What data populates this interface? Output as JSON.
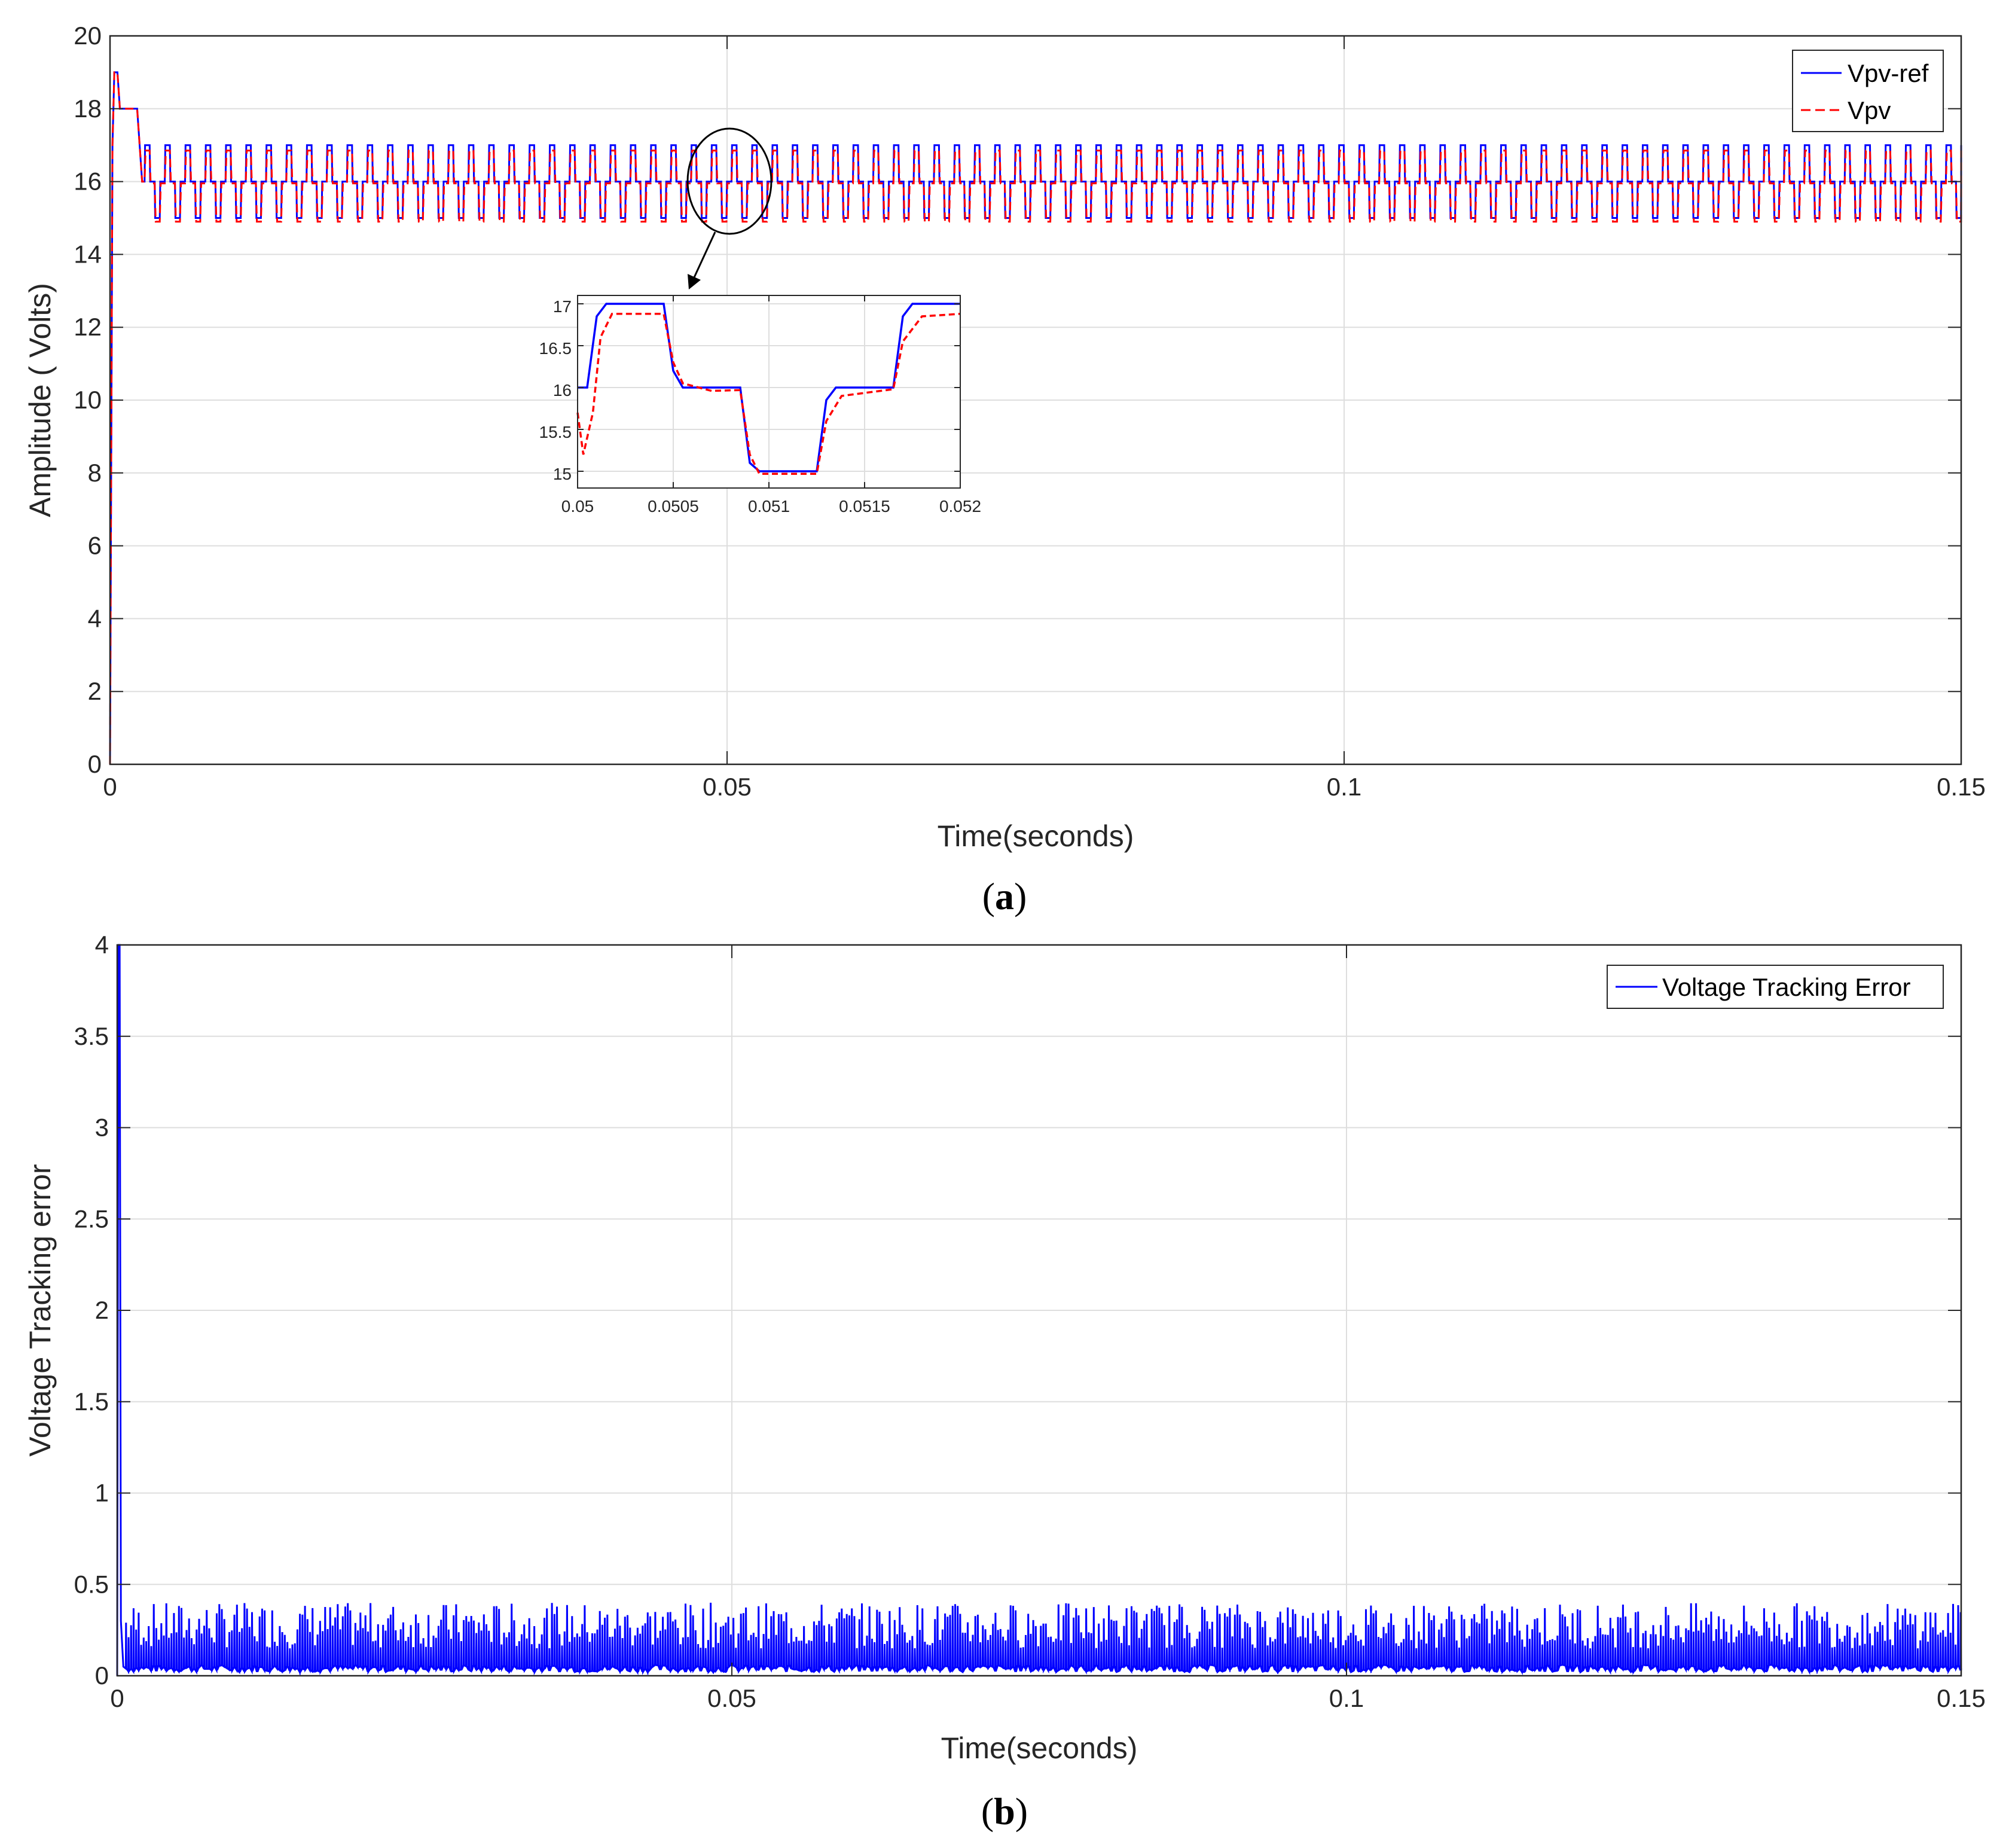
{
  "colors": {
    "ref": "#0000ff",
    "pv": "#ff0000",
    "grid": "#dedede",
    "axis": "#262626"
  },
  "chart_data": [
    {
      "type": "line",
      "panel": "a",
      "caption": {
        "open": "(",
        "letter": "a",
        "close": ")"
      },
      "xlabel": "Time(seconds)",
      "ylabel": "Amplitude ( Volts)",
      "xlim": [
        0,
        0.15
      ],
      "ylim": [
        0,
        20
      ],
      "xticks": [
        0,
        0.05,
        0.1,
        0.15
      ],
      "xtick_labels": [
        "0",
        "0.05",
        "0.1",
        "0.15"
      ],
      "yticks": [
        0,
        2,
        4,
        6,
        8,
        10,
        12,
        14,
        16,
        18,
        20
      ],
      "ytick_labels": [
        "0",
        "2",
        "4",
        "6",
        "8",
        "10",
        "12",
        "14",
        "16",
        "18",
        "20"
      ],
      "grid": true,
      "legend": {
        "placement": "top-right"
      },
      "series": [
        {
          "name": "Vpv-ref",
          "color": "#0000ff",
          "style": "solid",
          "levels": [
            17,
            16,
            15,
            16
          ],
          "step_period": 0.00041,
          "startup_peak": 19,
          "startup_plateau": 18
        },
        {
          "name": "Vpv",
          "color": "#ff0000",
          "style": "dashed",
          "levels": [
            16.85,
            15.95,
            14.9,
            15.95
          ],
          "step_period": 0.00041,
          "startup_peak": 19,
          "startup_plateau": 18
        }
      ],
      "inset": {
        "xlim": [
          0.05,
          0.052
        ],
        "ylim": [
          14.8,
          17.1
        ],
        "xticks": [
          0.05,
          0.0505,
          0.051,
          0.0515,
          0.052
        ],
        "xtick_labels": [
          "0.05",
          "0.0505",
          "0.051",
          "0.0515",
          "0.052"
        ],
        "yticks": [
          15,
          15.5,
          16,
          16.5,
          17
        ],
        "ytick_labels": [
          "15",
          "15.5",
          "16",
          "16.5",
          "17"
        ],
        "ref_points": [
          [
            0.05,
            16
          ],
          [
            0.05005,
            16
          ],
          [
            0.0501,
            16.85
          ],
          [
            0.05015,
            17
          ],
          [
            0.05045,
            17
          ],
          [
            0.0505,
            16.2
          ],
          [
            0.05055,
            16
          ],
          [
            0.05085,
            16
          ],
          [
            0.0509,
            15.1
          ],
          [
            0.05095,
            15
          ],
          [
            0.05125,
            15
          ],
          [
            0.0513,
            15.85
          ],
          [
            0.05135,
            16
          ],
          [
            0.05165,
            16
          ],
          [
            0.0517,
            16.85
          ],
          [
            0.05175,
            17
          ],
          [
            0.052,
            17
          ]
        ],
        "pv_points": [
          [
            0.05,
            15.7
          ],
          [
            0.05003,
            15.2
          ],
          [
            0.05008,
            15.7
          ],
          [
            0.05012,
            16.6
          ],
          [
            0.05018,
            16.88
          ],
          [
            0.05045,
            16.88
          ],
          [
            0.0505,
            16.3
          ],
          [
            0.05055,
            16.05
          ],
          [
            0.0507,
            15.96
          ],
          [
            0.05085,
            15.97
          ],
          [
            0.0509,
            15.2
          ],
          [
            0.05095,
            14.97
          ],
          [
            0.05125,
            14.97
          ],
          [
            0.0513,
            15.6
          ],
          [
            0.05138,
            15.9
          ],
          [
            0.05165,
            15.98
          ],
          [
            0.0517,
            16.55
          ],
          [
            0.0518,
            16.85
          ],
          [
            0.052,
            16.88
          ]
        ]
      }
    },
    {
      "type": "line",
      "panel": "b",
      "caption": {
        "open": "(",
        "letter": "b",
        "close": ")"
      },
      "xlabel": "Time(seconds)",
      "ylabel": "Voltage Tracking error",
      "xlim": [
        0,
        0.15
      ],
      "ylim": [
        0,
        4
      ],
      "xticks": [
        0,
        0.05,
        0.1,
        0.15
      ],
      "xtick_labels": [
        "0",
        "0.05",
        "0.1",
        "0.15"
      ],
      "yticks": [
        0,
        0.5,
        1,
        1.5,
        2,
        2.5,
        3,
        3.5,
        4
      ],
      "ytick_labels": [
        "0",
        "0.5",
        "1",
        "1.5",
        "2",
        "2.5",
        "3",
        "3.5",
        "4"
      ],
      "grid": true,
      "legend": {
        "placement": "top-right"
      },
      "series": [
        {
          "name": "Voltage Tracking Error",
          "color": "#0000ff",
          "style": "solid",
          "initial_peak": 4,
          "spike_range": [
            0.15,
            0.4
          ],
          "baseline_range": [
            0.02,
            0.06
          ],
          "spike_period": 0.000205
        }
      ]
    }
  ]
}
